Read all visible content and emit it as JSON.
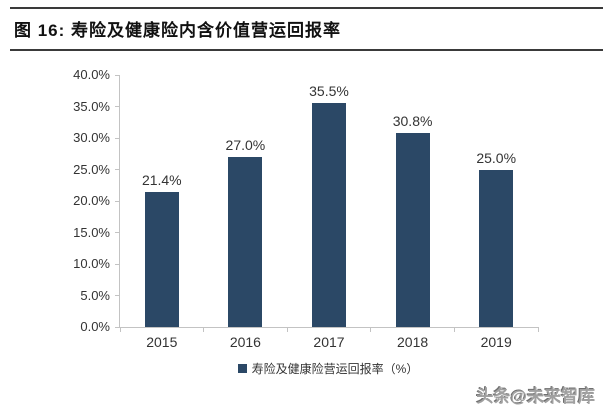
{
  "page": {
    "title": "图 16: 寿险及健康险内含价值营运回报率",
    "watermark": "头条@未来智库"
  },
  "chart_data": {
    "type": "bar",
    "title": "寿险及健康险内含价值营运回报率",
    "categories": [
      "2015",
      "2016",
      "2017",
      "2018",
      "2019"
    ],
    "values": [
      21.4,
      27.0,
      35.5,
      30.8,
      25.0
    ],
    "value_labels": [
      "21.4%",
      "27.0%",
      "35.5%",
      "30.8%",
      "25.0%"
    ],
    "xlabel": "",
    "ylabel": "",
    "ylim": [
      0,
      40
    ],
    "ytick_step": 5,
    "ytick_labels": [
      "0.0%",
      "5.0%",
      "10.0%",
      "15.0%",
      "20.0%",
      "25.0%",
      "30.0%",
      "35.0%",
      "40.0%"
    ],
    "grid": false,
    "legend": [
      "寿险及健康险营运回报率（%）"
    ],
    "legend_position": "bottom",
    "bar_color": "#2b4866",
    "axis_color": "#c3c3c3",
    "label_color": "#333333"
  }
}
